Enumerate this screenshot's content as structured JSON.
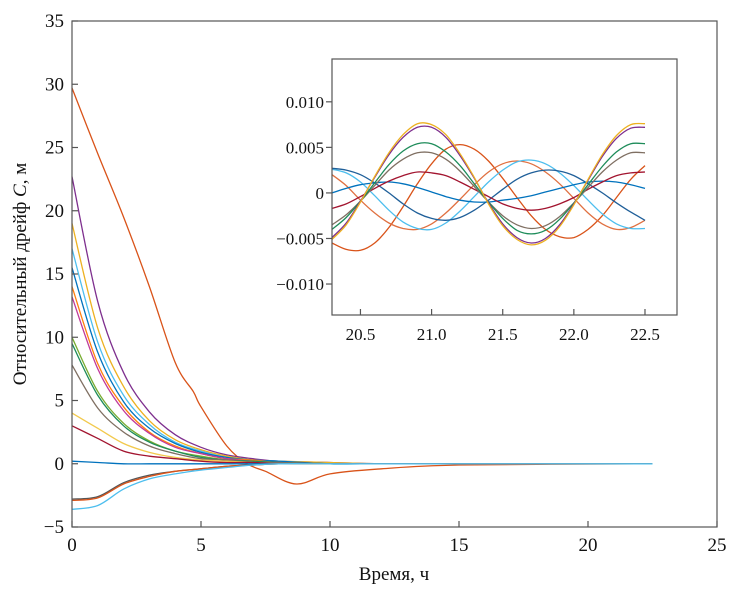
{
  "chart_data": [
    {
      "type": "line",
      "xlabel": "Время, ч",
      "ylabel": {
        "prefix": "Относительный дрейф ",
        "var": "C",
        "suffix": ", м"
      },
      "xlim": [
        0,
        25
      ],
      "ylim": [
        -5,
        35
      ],
      "xticks": [
        "0",
        "5",
        "10",
        "15",
        "20",
        "25"
      ],
      "yticks": [
        "−5",
        "0",
        "5",
        "10",
        "15",
        "20",
        "25",
        "30",
        "35"
      ],
      "xtick_values": [
        0,
        5,
        10,
        15,
        20,
        25
      ],
      "ytick_values": [
        -5,
        0,
        5,
        10,
        15,
        20,
        25,
        30,
        35
      ],
      "grid": false,
      "x": [
        0,
        1,
        2,
        3,
        4,
        5,
        6,
        7,
        8,
        10,
        12,
        15,
        22.5
      ],
      "series": [
        {
          "color": "#d95319",
          "x": [
            0,
            1,
            2,
            3,
            4,
            4.7,
            5,
            6,
            6.8,
            7.5,
            8.7,
            10,
            12,
            15,
            22.5
          ],
          "values": [
            29.7,
            24.5,
            19.5,
            14.0,
            8.0,
            5.7,
            4.5,
            1.4,
            0,
            -0.6,
            -1.6,
            -0.8,
            -0.4,
            -0.1,
            0
          ]
        },
        {
          "color": "#7e2f8e",
          "values": [
            22.7,
            12.8,
            7.2,
            4.1,
            2.3,
            1.3,
            0.7,
            0.4,
            0.2,
            0.1,
            0,
            0,
            0
          ]
        },
        {
          "color": "#edb120",
          "values": [
            19,
            10.7,
            6.1,
            3.4,
            1.9,
            1.1,
            0.6,
            0.3,
            0.2,
            0.1,
            0,
            0,
            0
          ]
        },
        {
          "color": "#4dbeee",
          "values": [
            17,
            9.6,
            5.4,
            3.1,
            1.7,
            1.0,
            0.5,
            0.3,
            0.2,
            0,
            0,
            0,
            0
          ]
        },
        {
          "color": "#0072bd",
          "values": [
            15.5,
            8.8,
            4.9,
            2.8,
            1.6,
            0.9,
            0.5,
            0.3,
            0.2,
            0,
            0,
            0,
            0
          ]
        },
        {
          "color": "#ff7f0e",
          "values": [
            14,
            7.9,
            4.5,
            2.5,
            1.4,
            0.8,
            0.4,
            0.3,
            0.1,
            0,
            0,
            0,
            0
          ]
        },
        {
          "color": "#c0399a",
          "values": [
            13.2,
            7.5,
            4.2,
            2.4,
            1.3,
            0.8,
            0.4,
            0.2,
            0.1,
            0,
            0,
            0,
            0
          ]
        },
        {
          "color": "#77ac30",
          "values": [
            10,
            5.7,
            3.2,
            1.8,
            1.0,
            0.6,
            0.3,
            0.2,
            0.1,
            0,
            0,
            0,
            0
          ]
        },
        {
          "color": "#1e8c5a",
          "values": [
            9.5,
            5.4,
            3.0,
            1.7,
            1.0,
            0.5,
            0.3,
            0.2,
            0.1,
            0,
            0,
            0,
            0
          ]
        },
        {
          "color": "#7f6f62",
          "values": [
            7.8,
            4.4,
            2.5,
            1.4,
            0.8,
            0.4,
            0.3,
            0.1,
            0.1,
            0,
            0,
            0,
            0
          ]
        },
        {
          "color": "#f2c94c",
          "values": [
            4,
            2.8,
            1.6,
            0.9,
            0.5,
            0.3,
            0.2,
            0.1,
            0,
            0,
            0,
            0,
            0
          ]
        },
        {
          "color": "#a2142f",
          "values": [
            3,
            2.0,
            1.0,
            0.6,
            0.4,
            0.2,
            0.1,
            0.1,
            0,
            0,
            0,
            0,
            0
          ]
        },
        {
          "color": "#0072bd",
          "values": [
            0.2,
            0.1,
            0,
            0,
            0,
            0,
            0,
            0,
            0,
            0,
            0,
            0,
            0
          ]
        },
        {
          "color": "#555555",
          "values": [
            -2.8,
            -2.6,
            -1.5,
            -0.9,
            -0.6,
            -0.4,
            -0.2,
            -0.1,
            0,
            0,
            0,
            0,
            0
          ]
        },
        {
          "color": "#d95319",
          "values": [
            -2.9,
            -2.7,
            -1.6,
            -1.0,
            -0.6,
            -0.4,
            -0.2,
            -0.1,
            0,
            0,
            0,
            0,
            0
          ]
        },
        {
          "color": "#4dbeee",
          "values": [
            -3.6,
            -3.3,
            -2.0,
            -1.2,
            -0.8,
            -0.5,
            -0.3,
            -0.1,
            0,
            0,
            0,
            0,
            0
          ]
        }
      ]
    },
    {
      "type": "line",
      "inset": true,
      "xlim": [
        20.3,
        22.725
      ],
      "ylim": [
        -0.0134,
        0.0147
      ],
      "xticks": [
        "20.5",
        "21.0",
        "21.5",
        "22.0",
        "22.5"
      ],
      "yticks": [
        "0.010",
        "0.005",
        "0",
        "−0.005",
        "−0.010"
      ],
      "xtick_values": [
        20.5,
        21.0,
        21.5,
        22.0,
        22.5
      ],
      "ytick_values": [
        0.01,
        0.005,
        0,
        -0.005,
        -0.01
      ],
      "grid": false,
      "x": [
        20.3,
        20.4,
        20.5,
        20.6,
        20.7,
        20.8,
        20.9,
        21.0,
        21.1,
        21.2,
        21.3,
        21.4,
        21.5,
        21.6,
        21.7,
        21.8,
        21.9,
        22.0,
        22.1,
        22.2,
        22.3,
        22.4,
        22.5
      ],
      "series": [
        {
          "color": "#d95319",
          "values": [
            -0.0055,
            -0.0062,
            -0.0063,
            -0.0055,
            -0.0038,
            -0.0015,
            0.001,
            0.0032,
            0.0048,
            0.0053,
            0.0048,
            0.0035,
            0.0016,
            -0.0005,
            -0.0025,
            -0.004,
            -0.0048,
            -0.0049,
            -0.004,
            -0.0025,
            -0.0005,
            0.0015,
            0.003
          ]
        },
        {
          "color": "#e07040",
          "values": [
            0.002,
            0.0008,
            -0.0008,
            -0.0022,
            -0.0033,
            -0.0039,
            -0.004,
            -0.0034,
            -0.0022,
            -0.0007,
            0.0009,
            0.0023,
            0.0032,
            0.0035,
            0.0032,
            0.0023,
            0.001,
            -0.0006,
            -0.0022,
            -0.0034,
            -0.004,
            -0.0038,
            -0.003
          ]
        },
        {
          "color": "#4dbeee",
          "values": [
            0.0026,
            0.0022,
            0.0012,
            -0.0003,
            -0.0019,
            -0.0032,
            -0.0039,
            -0.004,
            -0.0033,
            -0.002,
            -0.0004,
            0.0012,
            0.0025,
            0.0034,
            0.0036,
            0.0032,
            0.0022,
            0.0008,
            -0.0008,
            -0.0023,
            -0.0034,
            -0.0039,
            -0.0039
          ]
        },
        {
          "color": "#1f5f99",
          "values": [
            0.0027,
            0.0025,
            0.002,
            0.0011,
            0,
            -0.0012,
            -0.0022,
            -0.0028,
            -0.003,
            -0.0027,
            -0.0019,
            -0.0008,
            0.0004,
            0.0015,
            0.0022,
            0.0025,
            0.0024,
            0.0019,
            0.001,
            0,
            -0.0011,
            -0.0021,
            -0.003
          ]
        },
        {
          "color": "#0072bd",
          "values": [
            0,
            0.0005,
            0.0009,
            0.0011,
            0.0012,
            0.001,
            0.0006,
            0.0001,
            -0.0004,
            -0.0008,
            -0.001,
            -0.001,
            -0.0008,
            -0.0006,
            -0.0003,
            0.0001,
            0.0005,
            0.0009,
            0.0012,
            0.0013,
            0.0012,
            0.0009,
            0.0005
          ]
        },
        {
          "color": "#a2142f",
          "values": [
            -0.0017,
            -0.0012,
            -0.0004,
            0.0005,
            0.0013,
            0.0019,
            0.0023,
            0.0022,
            0.0019,
            0.0012,
            0.0004,
            -0.0004,
            -0.0012,
            -0.0017,
            -0.0019,
            -0.0017,
            -0.0012,
            -0.0005,
            0.0004,
            0.0012,
            0.0019,
            0.0022,
            0.0023
          ]
        },
        {
          "color": "#7f6f62",
          "values": [
            -0.0035,
            -0.0024,
            -0.0009,
            0.0008,
            0.0025,
            0.0037,
            0.0044,
            0.0044,
            0.0037,
            0.0024,
            0.0007,
            -0.001,
            -0.0025,
            -0.0035,
            -0.0039,
            -0.0036,
            -0.0026,
            -0.0011,
            0.0006,
            0.0023,
            0.0036,
            0.0044,
            0.0044
          ]
        },
        {
          "color": "#1e8c5a",
          "values": [
            -0.004,
            -0.0027,
            -0.0009,
            0.0011,
            0.0031,
            0.0046,
            0.0054,
            0.0054,
            0.0045,
            0.003,
            0.001,
            -0.001,
            -0.0028,
            -0.0041,
            -0.0045,
            -0.0041,
            -0.0029,
            -0.0011,
            0.0009,
            0.0029,
            0.0045,
            0.0054,
            0.0054
          ]
        },
        {
          "color": "#7e2f8e",
          "values": [
            -0.0049,
            -0.0033,
            -0.0009,
            0.0017,
            0.0042,
            0.0061,
            0.0072,
            0.0072,
            0.0061,
            0.0041,
            0.0016,
            -0.0011,
            -0.0034,
            -0.0049,
            -0.0055,
            -0.005,
            -0.0035,
            -0.0012,
            0.0014,
            0.004,
            0.006,
            0.0071,
            0.0072
          ]
        },
        {
          "color": "#edb120",
          "values": [
            -0.0051,
            -0.0035,
            -0.001,
            0.0018,
            0.0044,
            0.0064,
            0.0076,
            0.0075,
            0.0064,
            0.0043,
            0.0017,
            -0.0012,
            -0.0036,
            -0.0051,
            -0.0057,
            -0.0052,
            -0.0037,
            -0.0013,
            0.0015,
            0.0042,
            0.0063,
            0.0075,
            0.0076
          ]
        }
      ]
    }
  ]
}
